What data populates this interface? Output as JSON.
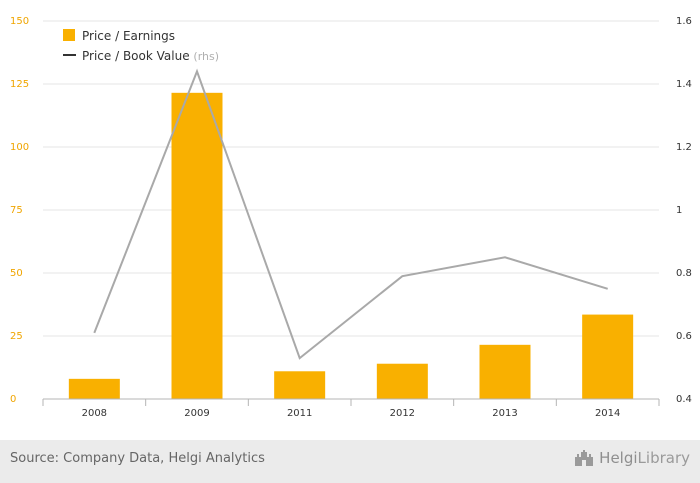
{
  "chart_data": {
    "type": "bar",
    "categories": [
      "2008",
      "2009",
      "2011",
      "2012",
      "2013",
      "2014"
    ],
    "series": [
      {
        "name": "Price / Earnings",
        "type": "bar",
        "axis": "left",
        "values": [
          8,
          121.5,
          11,
          14,
          21.5,
          33.5
        ]
      },
      {
        "name": "Price / Book Value",
        "type": "line",
        "axis": "right",
        "values": [
          0.61,
          1.44,
          0.53,
          0.79,
          0.85,
          0.75
        ]
      }
    ],
    "yLeft": {
      "min": 0,
      "max": 150,
      "ticks": [
        "0",
        "25",
        "50",
        "75",
        "100",
        "125",
        "150"
      ]
    },
    "yRight": {
      "min": 0.4,
      "max": 1.6,
      "ticks": [
        "0.4",
        "0.6",
        "0.8",
        "1",
        "1.2",
        "1.4",
        "1.6"
      ]
    },
    "legend": {
      "placement": "top-left",
      "items": [
        {
          "label": "Price / Earnings",
          "suffix": ""
        },
        {
          "label": "Price / Book Value",
          "suffix": "(rhs)"
        }
      ]
    },
    "colors": {
      "bar": "#f9b000",
      "line": "#a9a9a9",
      "leftTicks": "#f0a500",
      "grid": "#e6e6e6"
    },
    "grid": true
  },
  "footer": {
    "source": "Source: Company Data, Helgi Analytics",
    "logo_a": "Helgi",
    "logo_b": "Library",
    "logo_icon": "castle-icon"
  }
}
